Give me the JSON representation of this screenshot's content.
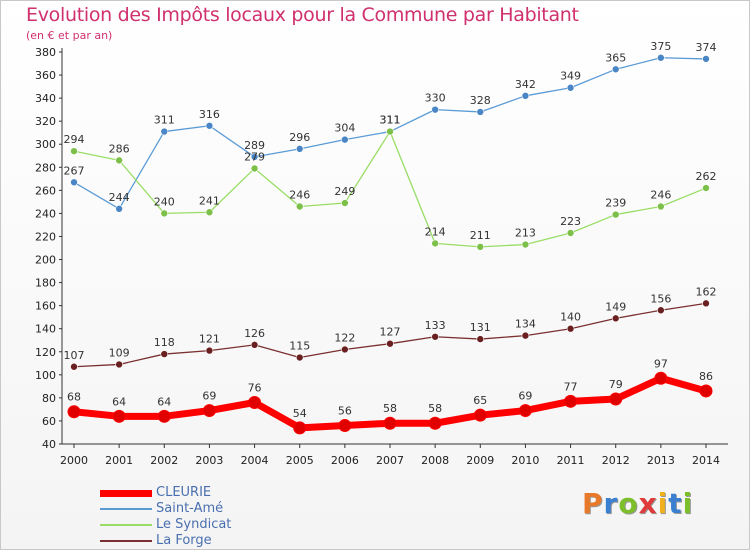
{
  "title": "Evolution des Impôts locaux pour la Commune par Habitant",
  "subtitle": "(en € et par an)",
  "logo": {
    "text": "Proxiti",
    "letter_colors": [
      "#e8792a",
      "#3a7fd0",
      "#7cbf2a",
      "#e03a3a",
      "#f0b020",
      "#3a7fd0",
      "#7cbf2a"
    ]
  },
  "chart_data": {
    "type": "line",
    "title": "Evolution des Impôts locaux pour la Commune par Habitant",
    "subtitle": "(en € et par an)",
    "xlabel": "",
    "ylabel": "",
    "categories": [
      "2000",
      "2001",
      "2002",
      "2003",
      "2004",
      "2005",
      "2006",
      "2007",
      "2008",
      "2009",
      "2010",
      "2011",
      "2012",
      "2013",
      "2014"
    ],
    "ylim": [
      40,
      380
    ],
    "yticks": [
      40,
      60,
      80,
      100,
      120,
      140,
      160,
      180,
      200,
      220,
      240,
      260,
      280,
      300,
      320,
      340,
      360,
      380
    ],
    "grid": false,
    "legend_position": "bottom-left",
    "series": [
      {
        "name": "CLEURIE",
        "color": "#ff0000",
        "marker": "#e00000",
        "width": 7,
        "values": [
          68,
          64,
          64,
          69,
          76,
          54,
          56,
          58,
          58,
          65,
          69,
          77,
          79,
          97,
          86
        ]
      },
      {
        "name": "Saint-Amé",
        "color": "#5b9bd5",
        "marker": "#4a86c5",
        "width": 1.3,
        "values": [
          267,
          244,
          311,
          316,
          289,
          296,
          304,
          311,
          330,
          328,
          342,
          349,
          365,
          375,
          374
        ]
      },
      {
        "name": "Le Syndicat",
        "color": "#99dd66",
        "marker": "#7cc04a",
        "width": 1.3,
        "values": [
          294,
          286,
          240,
          241,
          279,
          246,
          249,
          311,
          214,
          211,
          213,
          223,
          239,
          246,
          262
        ]
      },
      {
        "name": "La Forge",
        "color": "#7a3030",
        "marker": "#6a2020",
        "width": 1.3,
        "values": [
          107,
          109,
          118,
          121,
          126,
          115,
          122,
          127,
          133,
          131,
          134,
          140,
          149,
          156,
          162
        ]
      }
    ]
  }
}
